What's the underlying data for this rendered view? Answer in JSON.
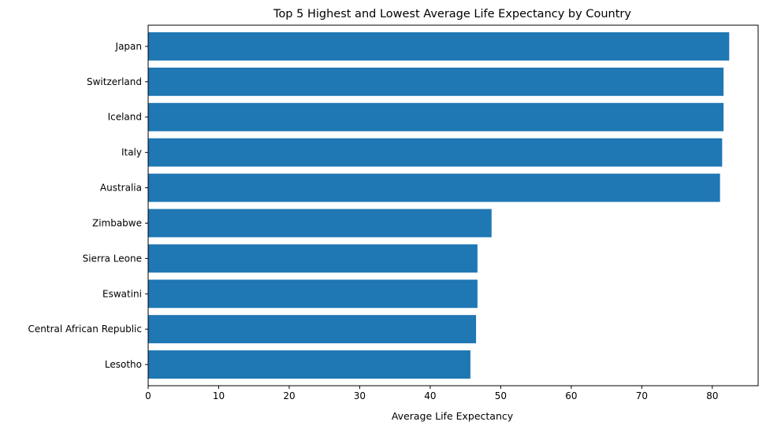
{
  "chart_data": {
    "type": "bar",
    "orientation": "horizontal",
    "title": "Top 5 Highest and Lowest Average Life Expectancy by Country",
    "xlabel": "Average Life Expectancy",
    "ylabel": "",
    "categories": [
      "Japan",
      "Switzerland",
      "Iceland",
      "Italy",
      "Australia",
      "Zimbabwe",
      "Sierra Leone",
      "Eswatini",
      "Central African Republic",
      "Lesotho"
    ],
    "values": [
      82.4,
      81.6,
      81.6,
      81.4,
      81.1,
      48.7,
      46.7,
      46.7,
      46.5,
      45.7
    ],
    "xlim": [
      0,
      86.5
    ],
    "xticks": [
      0,
      10,
      20,
      30,
      40,
      50,
      60,
      70,
      80
    ],
    "grid": false,
    "bar_color": "#1f77b4",
    "axis_color": "#000000"
  }
}
